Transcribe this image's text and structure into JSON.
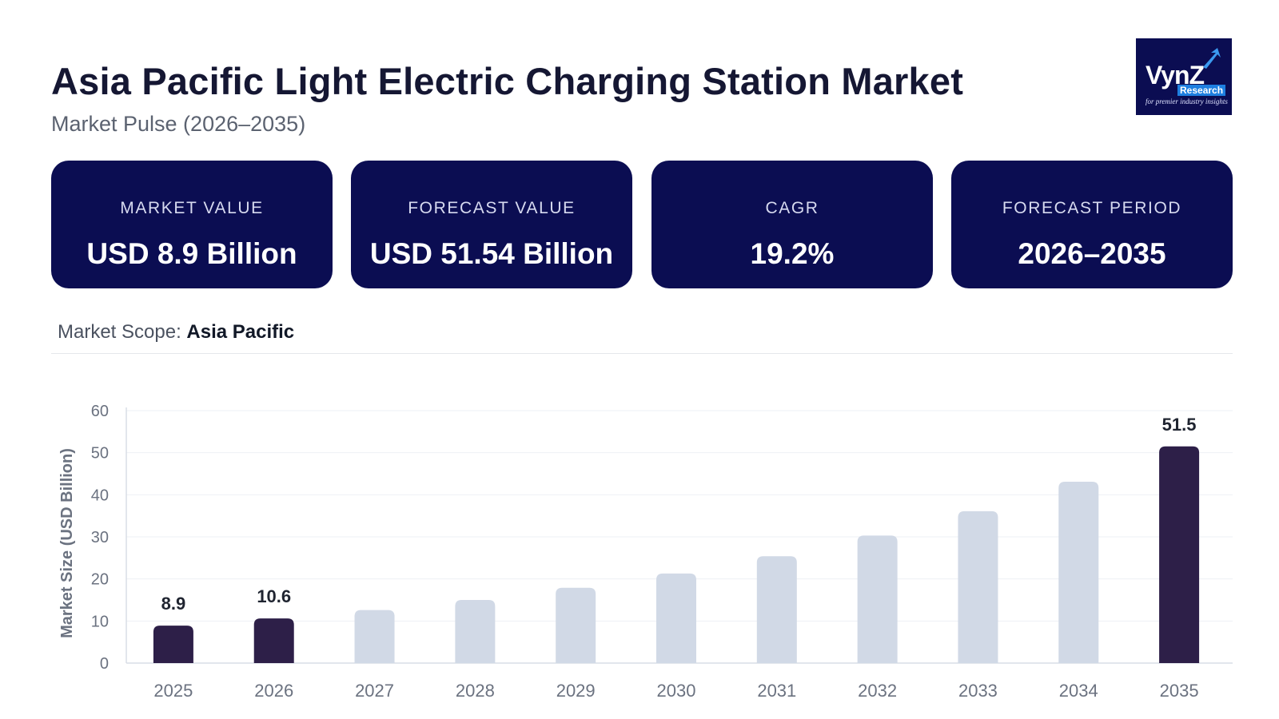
{
  "header": {
    "title": "Asia Pacific Light Electric Charging Station Market",
    "subtitle": "Market Pulse (2026–2035)"
  },
  "logo": {
    "text": "VynZ",
    "sub": "Research",
    "tagline": "for premier industry insights"
  },
  "cards": [
    {
      "label": "MARKET VALUE",
      "value": "USD 8.9 Billion"
    },
    {
      "label": "FORECAST VALUE",
      "value": "USD 51.54 Billion"
    },
    {
      "label": "CAGR",
      "value": "19.2%"
    },
    {
      "label": "FORECAST PERIOD",
      "value": "2026–2035"
    }
  ],
  "scope": {
    "label": "Market Scope:",
    "value": "Asia Pacific"
  },
  "colors": {
    "card_bg": "#0b0d52",
    "bar_highlight": "#2d1f48",
    "bar_normal": "#d1d9e6"
  },
  "chart_data": {
    "type": "bar",
    "categories": [
      "2025",
      "2026",
      "2027",
      "2028",
      "2029",
      "2030",
      "2031",
      "2032",
      "2033",
      "2034",
      "2035"
    ],
    "values": [
      8.9,
      10.6,
      12.6,
      15.0,
      17.9,
      21.3,
      25.4,
      30.3,
      36.1,
      43.1,
      51.5
    ],
    "highlighted": [
      "2025",
      "2026",
      "2035"
    ],
    "data_labels": {
      "2025": "8.9",
      "2026": "10.6",
      "2035": "51.5"
    },
    "ylabel": "Market Size (USD Billion)",
    "xlabel": "",
    "ylim": [
      0,
      60
    ],
    "yticks": [
      0,
      10,
      20,
      30,
      40,
      50,
      60
    ],
    "grid": true
  }
}
